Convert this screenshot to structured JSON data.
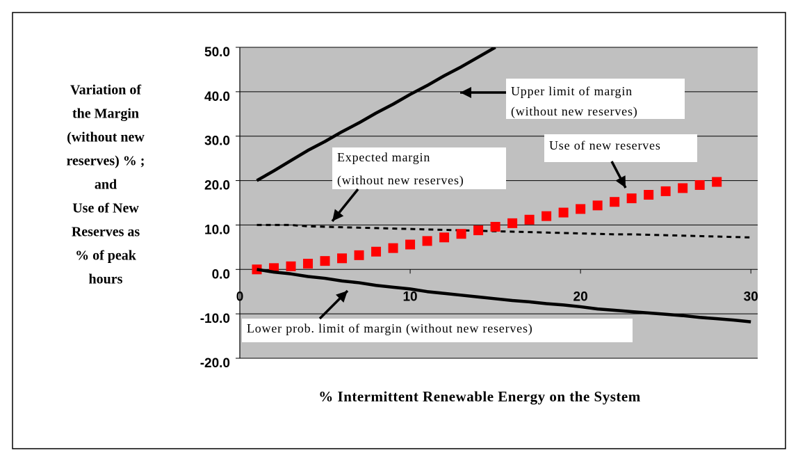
{
  "chart_data": {
    "type": "line",
    "y_label": [
      "Variation of",
      "the Margin",
      "(without new",
      "reserves) % ;",
      "and",
      "Use of New",
      "Reserves as",
      "% of peak",
      "hours"
    ],
    "x_label": "% Intermittent Renewable Energy on the System",
    "xlim": [
      0,
      30.4
    ],
    "xticks": [
      0,
      10,
      20,
      30
    ],
    "ylim": [
      -20,
      50
    ],
    "yticks": [
      {
        "value": 50,
        "label": "50.0"
      },
      {
        "value": 40,
        "label": "40.0"
      },
      {
        "value": 30,
        "label": "30.0"
      },
      {
        "value": 20,
        "label": "20.0"
      },
      {
        "value": 10,
        "label": "10.0"
      },
      {
        "value": 0,
        "label": "0.0"
      },
      {
        "value": -10,
        "label": "-10.0"
      },
      {
        "value": -20,
        "label": "-20.0"
      }
    ],
    "grid": true,
    "plot_background": "#c0c0c0",
    "x": [
      1,
      2,
      3,
      4,
      5,
      6,
      7,
      8,
      9,
      10,
      11,
      12,
      13,
      14,
      15,
      16,
      17,
      18,
      19,
      20,
      21,
      22,
      23,
      24,
      25,
      26,
      27,
      28,
      29,
      30
    ],
    "series": [
      {
        "name": "Upper limit of margin (without new reserves)",
        "color": "#000000",
        "style": "solid",
        "values": [
          20,
          22.2,
          24.5,
          26.8,
          28.8,
          31,
          33,
          35.2,
          37.2,
          39.4,
          41.4,
          43.6,
          45.6,
          47.8,
          50,
          null,
          null,
          null,
          null,
          null,
          null,
          null,
          null,
          null,
          null,
          null,
          null,
          null,
          null,
          null
        ]
      },
      {
        "name": "Expected margin (without new reserves)",
        "color": "#000000",
        "style": "dashed",
        "values": [
          10,
          10,
          10,
          9.7,
          9.6,
          9.5,
          9.4,
          9.3,
          9.2,
          9.1,
          9.0,
          8.9,
          8.8,
          8.7,
          8.6,
          8.5,
          8.4,
          8.3,
          8.2,
          8.1,
          8.0,
          7.9,
          7.9,
          7.8,
          7.7,
          7.6,
          7.5,
          7.4,
          7.3,
          7.2
        ]
      },
      {
        "name": "Use of new reserves",
        "color": "#ff0000",
        "style": "squares",
        "values": [
          0,
          0.3,
          0.7,
          1.3,
          1.9,
          2.5,
          3.2,
          4.0,
          4.8,
          5.6,
          6.4,
          7.2,
          8.0,
          8.8,
          9.6,
          10.4,
          11.2,
          12.0,
          12.8,
          13.6,
          14.4,
          15.2,
          16.0,
          16.8,
          17.6,
          18.3,
          19.0,
          19.7,
          null,
          null
        ]
      },
      {
        "name": "Lower prob. limit of margin (without new reserves)",
        "color": "#000000",
        "style": "solid",
        "values": [
          0,
          -0.6,
          -1.0,
          -1.6,
          -2.0,
          -2.6,
          -3.0,
          -3.6,
          -4.0,
          -4.4,
          -5.0,
          -5.4,
          -5.8,
          -6.2,
          -6.6,
          -7.0,
          -7.3,
          -7.7,
          -8.0,
          -8.4,
          -8.9,
          -9.2,
          -9.5,
          -9.8,
          -10.1,
          -10.4,
          -10.8,
          -11.1,
          -11.4,
          -11.8
        ]
      }
    ],
    "annotations": [
      {
        "lines": [
          "Upper limit of margin",
          "(without new reserves)"
        ]
      },
      {
        "lines": [
          "Expected margin",
          "(without new reserves)"
        ]
      },
      {
        "lines": [
          "Use of new reserves"
        ]
      },
      {
        "lines": [
          "Lower prob. limit of margin (without new reserves)"
        ]
      }
    ]
  }
}
